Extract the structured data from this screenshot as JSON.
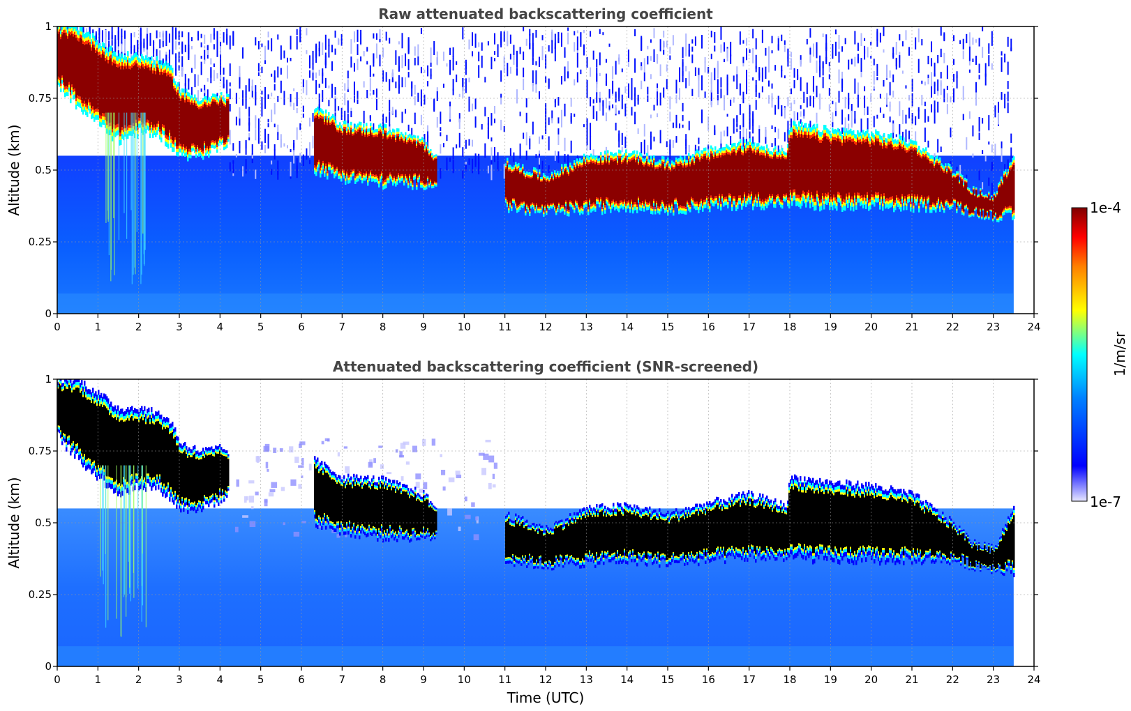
{
  "chart_data": [
    {
      "type": "heatmap",
      "title": "Raw attenuated backscattering coefficient",
      "xlabel": "",
      "ylabel": "Altitude (km)",
      "xlim": [
        0,
        24
      ],
      "ylim": [
        0,
        1
      ],
      "xticks": [
        "0",
        "1",
        "2",
        "3",
        "4",
        "5",
        "6",
        "7",
        "8",
        "9",
        "10",
        "11",
        "12",
        "13",
        "14",
        "15",
        "16",
        "17",
        "18",
        "19",
        "20",
        "21",
        "22",
        "23",
        "24"
      ],
      "yticks": [
        "0",
        "0.25",
        "0.5",
        "0.75",
        "1"
      ],
      "ytick_values": [
        0,
        0.25,
        0.5,
        0.75,
        1
      ],
      "data_end_time": 23.5,
      "screened": false,
      "grid": true,
      "cloud_layer": {
        "time": [
          0,
          0.5,
          1,
          1.5,
          2,
          2.5,
          2.8,
          3,
          3.5,
          4,
          4.2
        ],
        "base_km": [
          0.8,
          0.72,
          0.66,
          0.6,
          0.63,
          0.62,
          0.58,
          0.55,
          0.55,
          0.58,
          0.6
        ],
        "top_km": [
          1.0,
          1.0,
          0.95,
          0.9,
          0.9,
          0.88,
          0.85,
          0.78,
          0.75,
          0.76,
          0.75
        ],
        "time_b": [
          6.3,
          7,
          8,
          9,
          9.3
        ],
        "base_b_km": [
          0.5,
          0.47,
          0.45,
          0.45,
          0.45
        ],
        "top_b_km": [
          0.72,
          0.66,
          0.65,
          0.6,
          0.55
        ],
        "time_c": [
          11,
          12,
          13,
          14,
          15,
          16,
          17,
          17.9,
          18,
          19,
          20,
          21,
          22,
          22.5,
          23,
          23.5
        ],
        "base_c_km": [
          0.37,
          0.35,
          0.36,
          0.37,
          0.36,
          0.37,
          0.38,
          0.38,
          0.38,
          0.37,
          0.37,
          0.37,
          0.37,
          0.35,
          0.34,
          0.33
        ],
        "top_c_km": [
          0.53,
          0.48,
          0.55,
          0.56,
          0.53,
          0.57,
          0.6,
          0.56,
          0.66,
          0.64,
          0.63,
          0.6,
          0.5,
          0.43,
          0.41,
          0.56
        ]
      }
    },
    {
      "type": "heatmap",
      "title": "Attenuated backscattering coefficient (SNR-screened)",
      "xlabel": "Time (UTC)",
      "ylabel": "Altitude (km)",
      "xlim": [
        0,
        24
      ],
      "ylim": [
        0,
        1
      ],
      "xticks": [
        "0",
        "1",
        "2",
        "3",
        "4",
        "5",
        "6",
        "7",
        "8",
        "9",
        "10",
        "11",
        "12",
        "13",
        "14",
        "15",
        "16",
        "17",
        "18",
        "19",
        "20",
        "21",
        "22",
        "23",
        "24"
      ],
      "yticks": [
        "0",
        "0.25",
        "0.5",
        "0.75",
        "1"
      ],
      "ytick_values": [
        0,
        0.25,
        0.5,
        0.75,
        1
      ],
      "data_end_time": 23.5,
      "screened": true,
      "grid": true
    }
  ],
  "colorbar": {
    "label": "1/m/sr",
    "max_label": "1e-4",
    "min_label": "1e-7",
    "colormap": "jet",
    "colors": [
      "#e8e8ff",
      "#0000ff",
      "#0080ff",
      "#00ffff",
      "#ffff00",
      "#ff8000",
      "#ff0000",
      "#800000"
    ]
  }
}
